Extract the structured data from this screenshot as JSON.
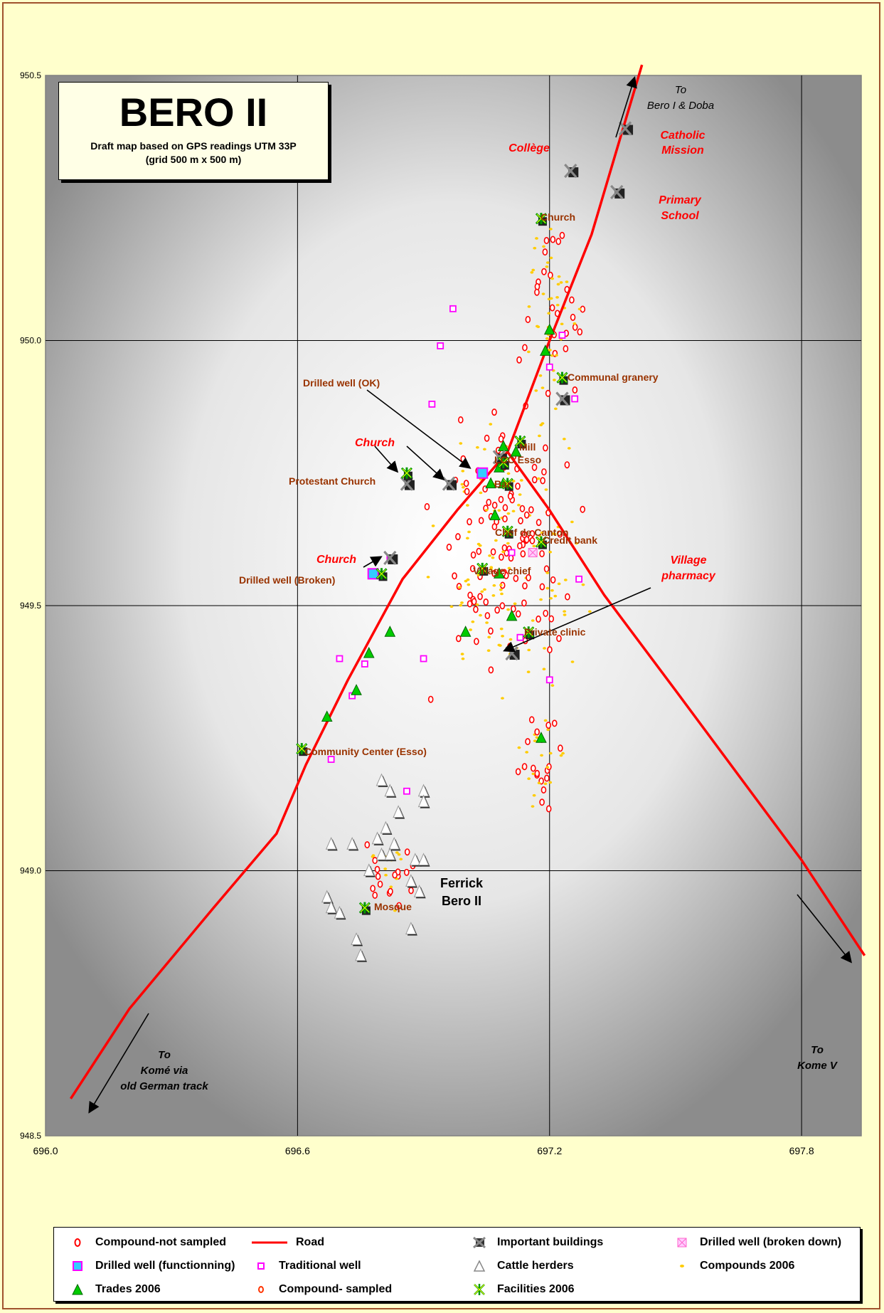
{
  "title": "BERO II",
  "subtitle_line1": "Draft map based on GPS readings UTM 33P",
  "subtitle_line2": "(grid 500 m x 500 m)",
  "axes": {
    "x_ticks": [
      "696.0",
      "696.6",
      "697.2",
      "697.8"
    ],
    "y_ticks": [
      "950.5",
      "950.0",
      "949.5",
      "949.0",
      "948.5"
    ]
  },
  "labels": {
    "to_bero": [
      "To",
      "Bero I & Doba"
    ],
    "to_kome_old": [
      "To",
      "Komé via",
      "old German track"
    ],
    "to_kome_v": [
      "To",
      "Kome V"
    ],
    "college": "Collège",
    "catholic_mission": [
      "Catholic",
      "Mission"
    ],
    "primary_school": [
      "Primary",
      "School"
    ],
    "church_top": "Church",
    "communal_granery": "Communal granery",
    "drilled_well_ok": "Drilled well (OK)",
    "church_red_1": "Church",
    "mill": "Mill",
    "lcc_esso": "LCC Esso",
    "protestant_church": "Protestant Church",
    "bar": "Bar",
    "chef_de_canton": "Chef de Canton",
    "credit_bank": "Credit bank",
    "church_red_2": "Church",
    "drilled_well_broken": "Drilled well (Broken)",
    "village_chief": "Village chief",
    "village_pharmacy": [
      "Village",
      "pharmacy"
    ],
    "private_clinic": "Private clinic",
    "community_center": "Community Center (Esso)",
    "ferrick": [
      "Ferrick",
      "Bero II"
    ],
    "mosque": "Mosque"
  },
  "legend": [
    {
      "symbol": "compound-not-sampled",
      "label": "Compound-not sampled"
    },
    {
      "symbol": "road",
      "label": "Road"
    },
    {
      "symbol": "important-building",
      "label": "Important buildings"
    },
    {
      "symbol": "drilled-well-broken",
      "label": "Drilled well (broken down)"
    },
    {
      "symbol": "drilled-well-functioning",
      "label": "Drilled well (functionning)"
    },
    {
      "symbol": "traditional-well",
      "label": "Traditional well"
    },
    {
      "symbol": "cattle-herder",
      "label": "Cattle herders"
    },
    {
      "symbol": "compound-2006",
      "label": "Compounds 2006"
    },
    {
      "symbol": "trade-2006",
      "label": "Trades 2006"
    },
    {
      "symbol": "compound-sampled",
      "label": "Compound- sampled"
    },
    {
      "symbol": "facility-2006",
      "label": "Facilities 2006"
    }
  ],
  "colors": {
    "road": "#ff0000",
    "label_brown": "#993300",
    "label_red": "#ff0000",
    "trade": "#00cc00",
    "compound_2006": "#ffcc00",
    "traditional_well": "#ff00ff",
    "drilled_well_fn": "#33ccff"
  },
  "chart_data": {
    "type": "scatter",
    "xlim": [
      696.0,
      697.95
    ],
    "ylim": [
      948.5,
      950.5
    ],
    "grid": true,
    "features": {
      "road_1": [
        [
          696.06,
          948.57
        ],
        [
          696.2,
          948.74
        ],
        [
          696.4,
          948.93
        ],
        [
          696.55,
          949.07
        ],
        [
          696.62,
          949.2
        ],
        [
          696.72,
          949.36
        ],
        [
          696.85,
          949.55
        ],
        [
          696.98,
          949.68
        ],
        [
          697.1,
          949.79
        ],
        [
          697.2,
          950.0
        ],
        [
          697.3,
          950.2
        ],
        [
          697.42,
          950.52
        ]
      ],
      "road_2": [
        [
          697.1,
          949.79
        ],
        [
          697.2,
          949.68
        ],
        [
          697.33,
          949.52
        ],
        [
          697.5,
          949.34
        ],
        [
          697.65,
          949.18
        ],
        [
          697.8,
          949.02
        ],
        [
          697.95,
          948.84
        ]
      ],
      "important_buildings": [
        [
          697.25,
          950.32
        ],
        [
          697.38,
          950.4
        ],
        [
          697.36,
          950.28
        ],
        [
          697.23,
          949.89
        ],
        [
          697.08,
          949.78
        ],
        [
          696.86,
          949.73
        ],
        [
          696.96,
          949.73
        ],
        [
          696.82,
          949.59
        ],
        [
          697.11,
          949.41
        ]
      ],
      "facilities": [
        [
          697.18,
          950.23
        ],
        [
          697.23,
          949.93
        ],
        [
          697.13,
          949.81
        ],
        [
          697.09,
          949.77
        ],
        [
          696.86,
          949.75
        ],
        [
          697.1,
          949.73
        ],
        [
          697.1,
          949.64
        ],
        [
          697.18,
          949.62
        ],
        [
          696.8,
          949.56
        ],
        [
          697.04,
          949.57
        ],
        [
          697.15,
          949.45
        ],
        [
          696.61,
          949.23
        ],
        [
          696.76,
          948.93
        ]
      ],
      "trades": [
        [
          697.2,
          950.02
        ],
        [
          697.19,
          949.98
        ],
        [
          697.09,
          949.8
        ],
        [
          697.12,
          949.79
        ],
        [
          697.08,
          949.76
        ],
        [
          697.06,
          949.73
        ],
        [
          697.09,
          949.73
        ],
        [
          697.07,
          949.67
        ],
        [
          697.08,
          949.56
        ],
        [
          697.11,
          949.48
        ],
        [
          697.0,
          949.45
        ],
        [
          696.82,
          949.45
        ],
        [
          696.77,
          949.41
        ],
        [
          696.74,
          949.34
        ],
        [
          696.67,
          949.29
        ],
        [
          697.18,
          949.25
        ]
      ],
      "drilled_well_functioning": [
        [
          697.04,
          949.75
        ],
        [
          696.78,
          949.56
        ]
      ],
      "drilled_well_broken": [
        [
          697.16,
          949.6
        ]
      ],
      "traditional_wells": [
        [
          696.97,
          950.06
        ],
        [
          696.94,
          949.99
        ],
        [
          697.23,
          950.01
        ],
        [
          696.92,
          949.88
        ],
        [
          697.2,
          949.95
        ],
        [
          697.26,
          949.89
        ],
        [
          696.82,
          949.59
        ],
        [
          697.27,
          949.55
        ],
        [
          697.11,
          949.6
        ],
        [
          696.7,
          949.4
        ],
        [
          696.76,
          949.39
        ],
        [
          696.9,
          949.4
        ],
        [
          697.13,
          949.44
        ],
        [
          697.2,
          949.36
        ],
        [
          696.73,
          949.33
        ],
        [
          696.68,
          949.21
        ],
        [
          696.86,
          949.15
        ]
      ],
      "cattle_herders": [
        [
          696.8,
          949.17
        ],
        [
          696.82,
          949.15
        ],
        [
          696.9,
          949.15
        ],
        [
          696.9,
          949.13
        ],
        [
          696.84,
          949.11
        ],
        [
          696.81,
          949.08
        ],
        [
          696.79,
          949.06
        ],
        [
          696.83,
          949.05
        ],
        [
          696.8,
          949.03
        ],
        [
          696.82,
          949.03
        ],
        [
          696.88,
          949.02
        ],
        [
          696.9,
          949.02
        ],
        [
          696.68,
          949.05
        ],
        [
          696.73,
          949.05
        ],
        [
          696.77,
          949.0
        ],
        [
          696.87,
          948.98
        ],
        [
          696.89,
          948.96
        ],
        [
          696.67,
          948.95
        ],
        [
          696.68,
          948.93
        ],
        [
          696.7,
          948.92
        ],
        [
          696.87,
          948.89
        ],
        [
          696.74,
          948.87
        ],
        [
          696.75,
          948.84
        ]
      ]
    }
  }
}
